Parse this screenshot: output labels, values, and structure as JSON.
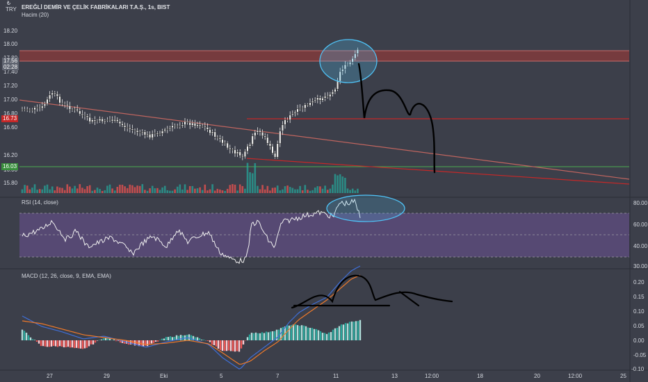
{
  "header": {
    "currency": "TRY",
    "currency_note": "₺",
    "title": "EREĞLİ DEMİR VE ÇELİK FABRİKALARI T.A.Ş., 1s, BIST",
    "volume_label": "Hacim (20)"
  },
  "price_axis": [
    "18.20",
    "18.00",
    "17.80",
    "17.40",
    "17.20",
    "17.00",
    "16.80",
    "16.60",
    "16.20",
    "16.00",
    "15.80"
  ],
  "current_price": {
    "value": "17.56",
    "countdown": "02:28"
  },
  "level_high": {
    "value": "16.73"
  },
  "level_low": {
    "value": "16.03"
  },
  "rsi": {
    "label": "RSI (14, close)",
    "axis": [
      "80.00",
      "60.00",
      "40.00",
      "30.00"
    ]
  },
  "macd": {
    "label": "MACD (12, 26, close, 9, EMA, EMA)",
    "axis": [
      "0.20",
      "0.15",
      "0.10",
      "0.05",
      "0.00",
      "-0.05",
      "-0.10"
    ]
  },
  "time_axis": [
    "27",
    "29",
    "Eki",
    "5",
    "7",
    "11",
    "13",
    "12:00",
    "18",
    "20",
    "12:00",
    "25"
  ],
  "colors": {
    "bg": "#3c3f4a",
    "up": "#26a69a",
    "down": "#ef5350",
    "rsi_band": "#5b4b7a",
    "resistance": "#c62828",
    "support": "#388e3c",
    "annotation": "#4fc3f7"
  }
}
